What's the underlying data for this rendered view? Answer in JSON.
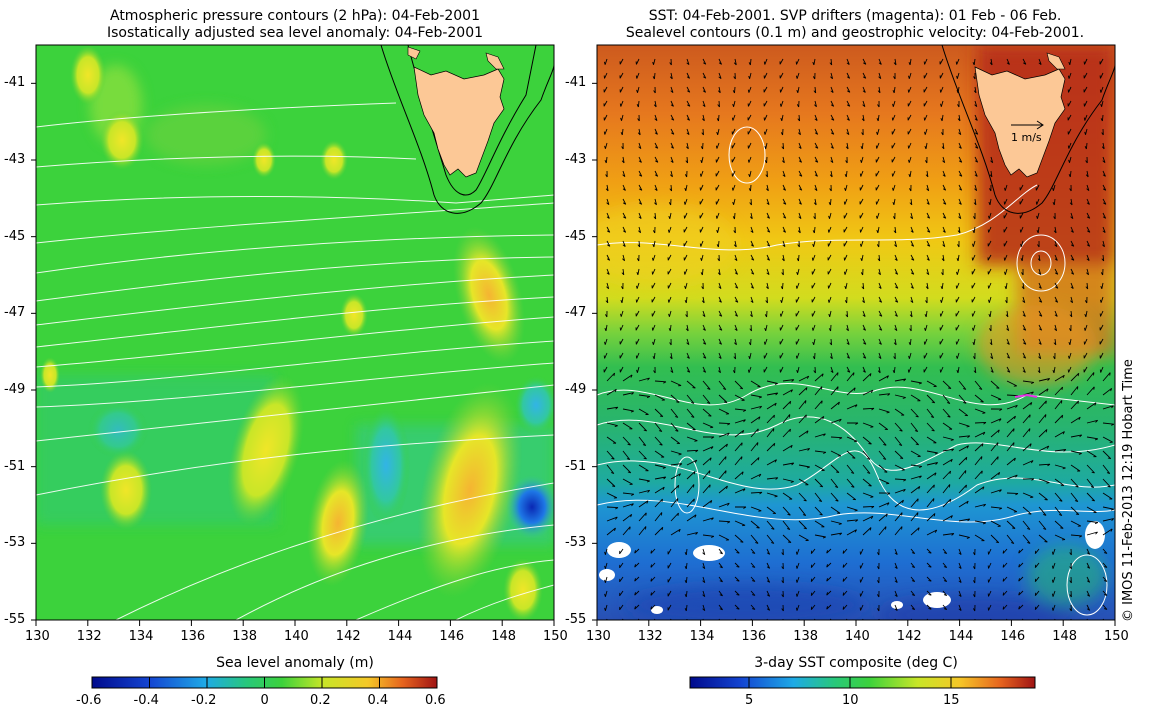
{
  "left_panel": {
    "title_line1": "Atmospheric pressure contours (2 hPa): 04-Feb-2001",
    "title_line2": "Isostatically adjusted sea level anomaly: 04-Feb-2001",
    "colorbar_label": "Sea level anomaly (m)",
    "colorbar_ticks": [
      "-0.6",
      "-0.4",
      "-0.2",
      "0",
      "0.2",
      "0.4",
      "0.6"
    ]
  },
  "right_panel": {
    "title_line1": "SST: 04-Feb-2001. SVP drifters (magenta): 01 Feb - 06 Feb.",
    "title_line2": "Sealevel contours (0.1 m) and geostrophic velocity: 04-Feb-2001.",
    "colorbar_label": "3-day SST composite (deg C)",
    "colorbar_ticks": [
      "5",
      "10",
      "15"
    ],
    "scale_arrow_label": "1 m/s"
  },
  "axes": {
    "lon_ticks": [
      "130",
      "132",
      "134",
      "136",
      "138",
      "140",
      "142",
      "144",
      "146",
      "148",
      "150"
    ],
    "lat_ticks": [
      "-41",
      "-43",
      "-45",
      "-47",
      "-49",
      "-51",
      "-53",
      "-55"
    ]
  },
  "credit": "© IMOS 11-Feb-2013 12:19 Hobart Time",
  "colors": {
    "land": "#fcc896",
    "sla_background": "#3cd23c",
    "sst_warm": "#c83c14",
    "sst_cold": "#1e5ad2"
  }
}
